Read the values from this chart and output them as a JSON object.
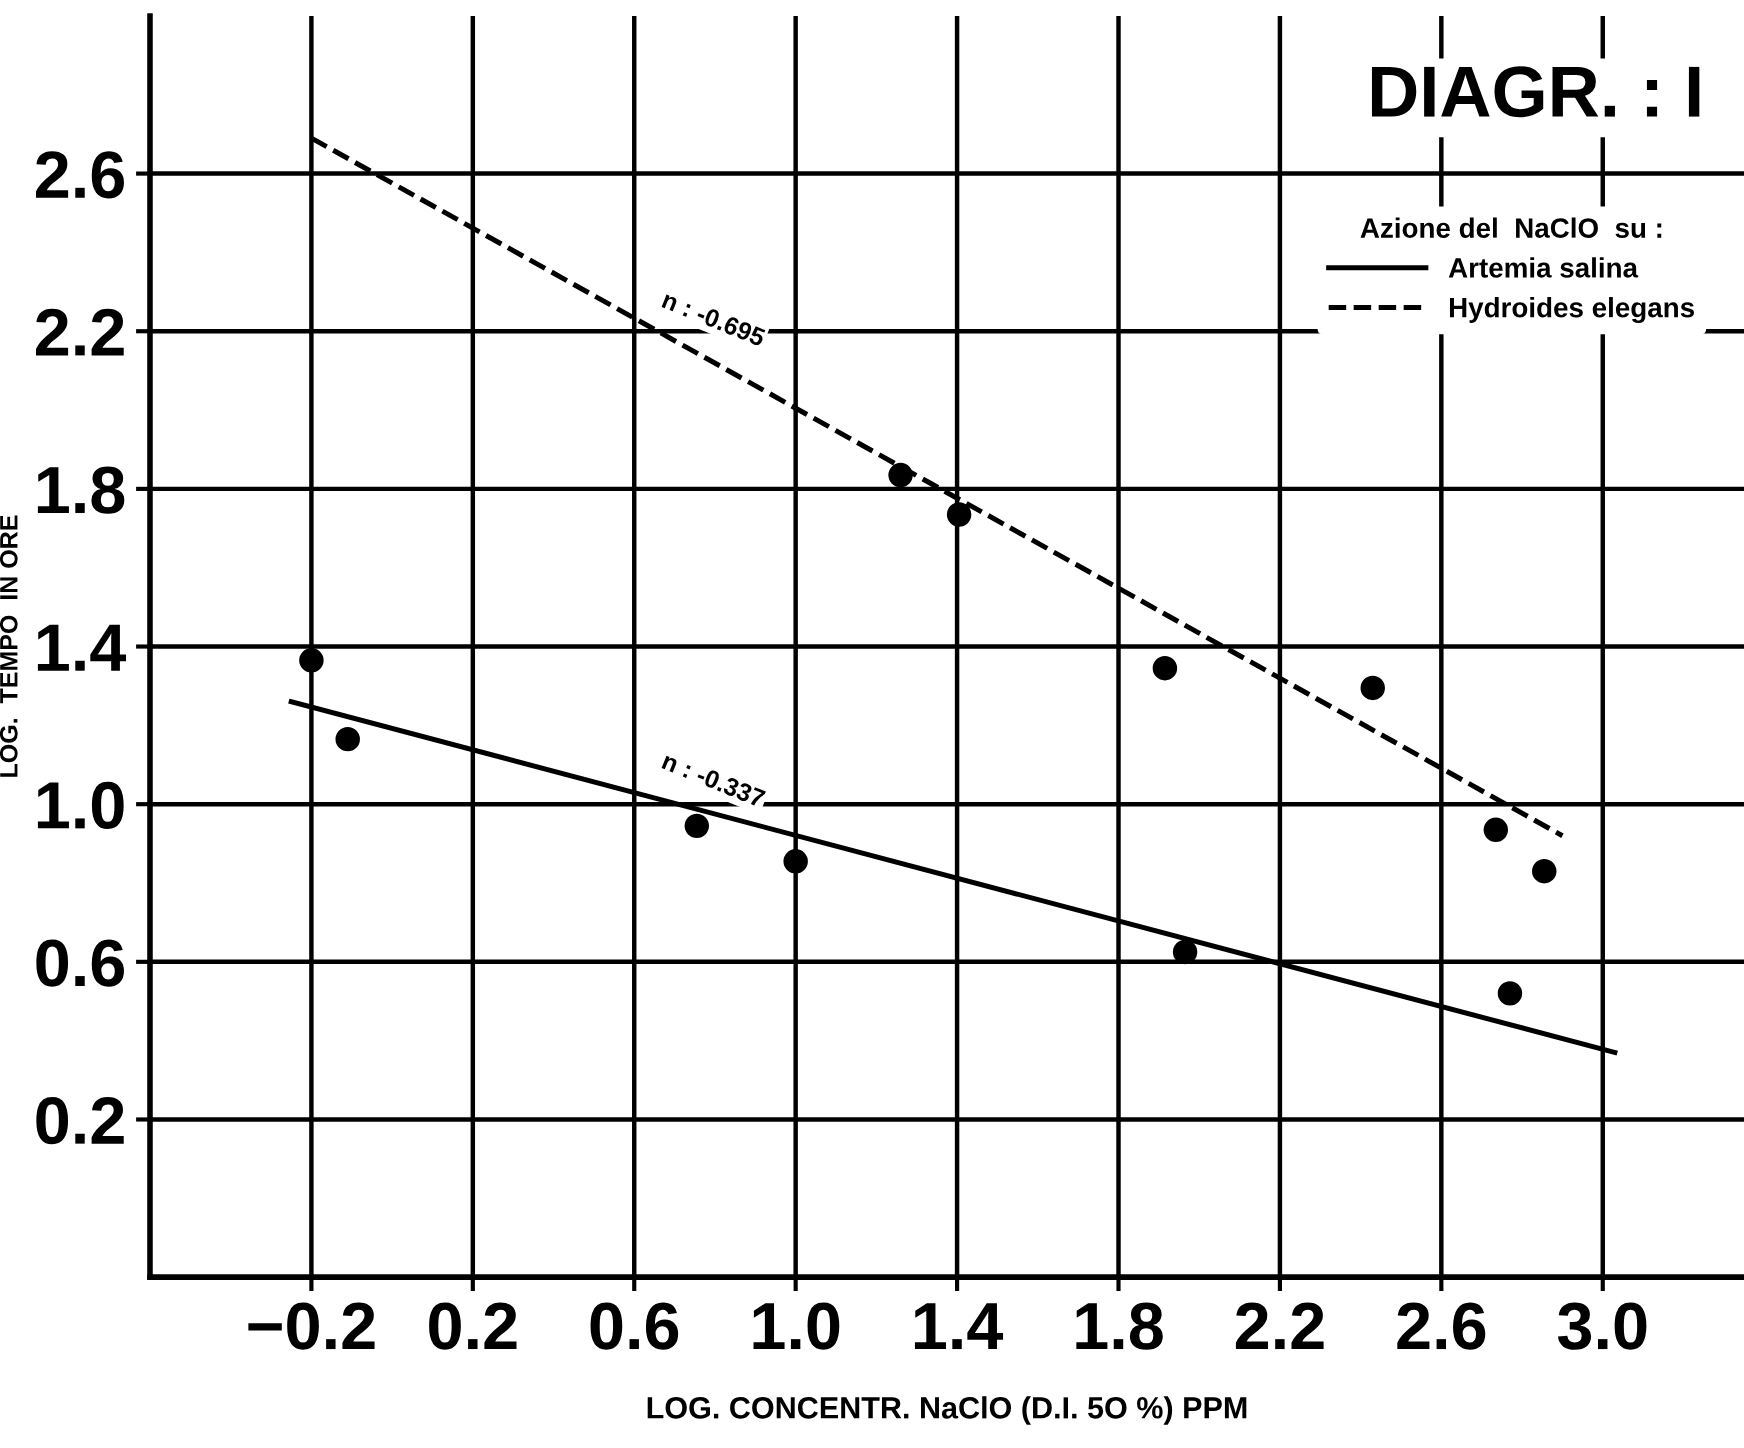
{
  "chart_data": {
    "type": "scatter",
    "title": "DIAGR. : I",
    "xlabel": "LOG. CONCENTR. NaClO (D.I. 5O %) PPM",
    "ylabel": "LOG.  TEMPO  IN ORE",
    "legend_title": "Azione del  NaClO  su :",
    "series": [
      {
        "name": "Artemia salina",
        "type": "line",
        "color": "#000000",
        "line_style": "solid",
        "x": [
          -0.25,
          3.03
        ],
        "values": [
          1.26,
          0.37
        ]
      },
      {
        "name": "Hydroides elegans",
        "type": "line",
        "color": "#000000",
        "line_style": "dashed",
        "x": [
          -0.2,
          2.9
        ],
        "values": [
          2.69,
          0.92
        ]
      },
      {
        "color": "#000000",
        "marker": "circle",
        "x": [
          -0.2,
          -0.11,
          0.755,
          1.0,
          1.965,
          2.77
        ],
        "values": [
          1.365,
          1.165,
          0.945,
          0.855,
          0.625,
          0.52
        ]
      },
      {
        "color": "#000000",
        "marker": "circle",
        "x": [
          1.26,
          1.405,
          1.915,
          2.43,
          2.735,
          2.855
        ],
        "values": [
          1.835,
          1.735,
          1.345,
          1.295,
          0.935,
          0.83
        ]
      }
    ],
    "annotations": [
      {
        "text": "n : -0.695",
        "x": 0.65,
        "y": 2.2
      },
      {
        "text": "n : -0.337",
        "x": 0.65,
        "y": 1.03
      }
    ],
    "xlim": [
      -0.6,
      3.35
    ],
    "ylim": [
      -0.2,
      3.0
    ],
    "xticks": [
      {
        "value": -0.2,
        "label": "−0.2"
      },
      {
        "value": 0.2,
        "label": "0.2"
      },
      {
        "value": 0.6,
        "label": "0.6"
      },
      {
        "value": 1.0,
        "label": "1.0"
      },
      {
        "value": 1.4,
        "label": "1.4"
      },
      {
        "value": 1.8,
        "label": "1.8"
      },
      {
        "value": 2.2,
        "label": "2.2"
      },
      {
        "value": 2.6,
        "label": "2.6"
      },
      {
        "value": 3.0,
        "label": "3.0"
      }
    ],
    "yticks": [
      {
        "value": 0.2,
        "label": "0.2"
      },
      {
        "value": 0.6,
        "label": "0.6"
      },
      {
        "value": 1.0,
        "label": "1.0"
      },
      {
        "value": 1.4,
        "label": "1.4"
      },
      {
        "value": 1.8,
        "label": "1.8"
      },
      {
        "value": 2.2,
        "label": "2.2"
      },
      {
        "value": 2.6,
        "label": "2.6"
      }
    ],
    "grid": true,
    "legend": "top right"
  }
}
